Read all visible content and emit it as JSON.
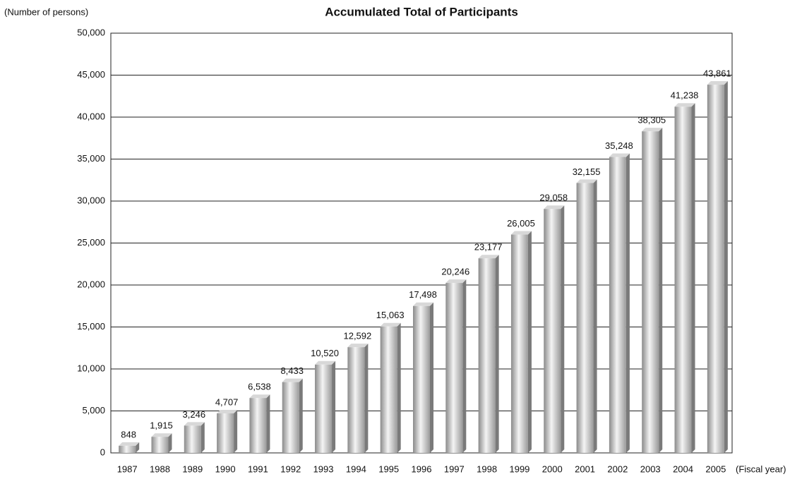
{
  "chart_data": {
    "type": "bar",
    "title": "Accumulated Total of Participants",
    "y_label": "(Number of persons)",
    "x_label": "(Fiscal year)",
    "categories": [
      "1987",
      "1988",
      "1989",
      "1990",
      "1991",
      "1992",
      "1993",
      "1994",
      "1995",
      "1996",
      "1997",
      "1998",
      "1999",
      "2000",
      "2001",
      "2002",
      "2003",
      "2004",
      "2005"
    ],
    "values": [
      848,
      1915,
      3246,
      4707,
      6538,
      8433,
      10520,
      12592,
      15063,
      17498,
      20246,
      23177,
      26005,
      29058,
      32155,
      35248,
      38305,
      41238,
      43861
    ],
    "value_labels": [
      "848",
      "1,915",
      "3,246",
      "4,707",
      "6,538",
      "8,433",
      "10,520",
      "12,592",
      "15,063",
      "17,498",
      "20,246",
      "23,177",
      "26,005",
      "29,058",
      "32,155",
      "35,248",
      "38,305",
      "41,238",
      "43,861"
    ],
    "color": "#b8b8b8",
    "ylim": [
      0,
      50000
    ],
    "yticks": [
      0,
      {
        "value": 5000,
        "label": "5,000"
      },
      {
        "value": 10000,
        "label": "10,000"
      },
      {
        "value": 15000,
        "label": "15,000"
      },
      {
        "value": 20000,
        "label": "20,000"
      },
      {
        "value": 25000,
        "label": "25,000"
      },
      {
        "value": 30000,
        "label": "30,000"
      },
      {
        "value": 35000,
        "label": "35,000"
      },
      {
        "value": 40000,
        "label": "40,000"
      },
      {
        "value": 45000,
        "label": "45,000"
      },
      {
        "value": 50000,
        "label": "50,000"
      }
    ],
    "grid": true
  }
}
